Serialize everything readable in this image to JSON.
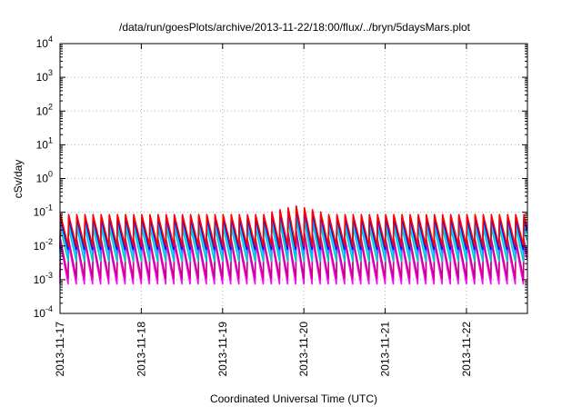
{
  "chart_data": {
    "type": "line",
    "title": "/data/run/goesPlots/archive/2013-11-22/18:00/flux/../bryn/5daysMars.plot",
    "xlabel": "Coordinated Universal Time (UTC)",
    "ylabel": "cSv/day",
    "x_start": "2013-11-17",
    "x_end": "2013-11-22 18:00",
    "xlim_days": [
      0,
      5.75
    ],
    "ylim": [
      0.0001,
      10000
    ],
    "yscale": "log",
    "grid": true,
    "x_ticks": [
      "2013-11-17",
      "2013-11-18",
      "2013-11-19",
      "2013-11-20",
      "2013-11-21",
      "2013-11-22"
    ],
    "y_ticks": [
      {
        "base": "10",
        "exp": "-4",
        "value": 0.0001
      },
      {
        "base": "10",
        "exp": "-3",
        "value": 0.001
      },
      {
        "base": "10",
        "exp": "-2",
        "value": 0.01
      },
      {
        "base": "10",
        "exp": "-1",
        "value": 0.1
      },
      {
        "base": "10",
        "exp": "0",
        "value": 1
      },
      {
        "base": "10",
        "exp": "1",
        "value": 10
      },
      {
        "base": "10",
        "exp": "2",
        "value": 100
      },
      {
        "base": "10",
        "exp": "3",
        "value": 1000
      },
      {
        "base": "10",
        "exp": "4",
        "value": 10000
      }
    ],
    "cycle_days": 0.1,
    "series": [
      {
        "color": "#ff00ff",
        "peak": 0.012,
        "trough": 0.00075
      },
      {
        "color": "#cc0088",
        "peak": 0.016,
        "trough": 0.0011
      },
      {
        "color": "#00cccc",
        "peak": 0.035,
        "trough": 0.0035
      },
      {
        "color": "#00aaff",
        "peak": 0.055,
        "trough": 0.006
      },
      {
        "color": "#0000ff",
        "peak": 0.07,
        "trough": 0.008
      },
      {
        "color": "#ff0000",
        "peak": 0.085,
        "trough": 0.01
      }
    ],
    "event": {
      "start_days": 2.5,
      "end_days": 3.3,
      "peak_factor": 1.8
    }
  }
}
